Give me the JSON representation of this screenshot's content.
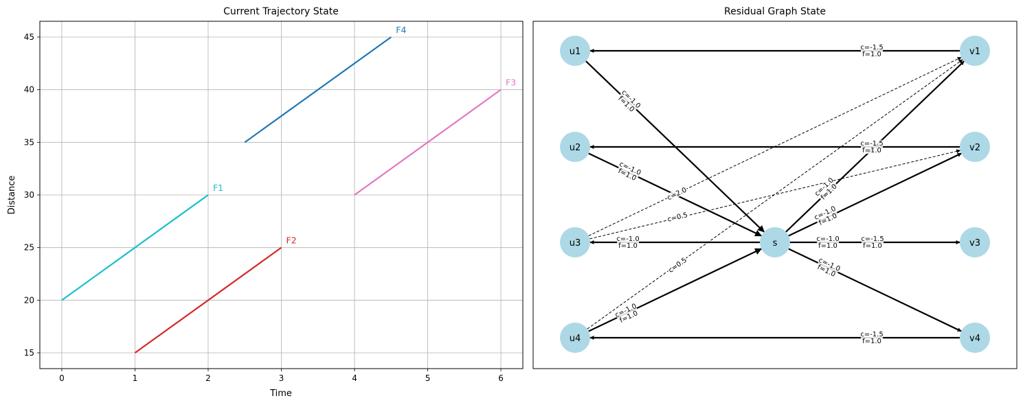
{
  "chart_data": [
    {
      "type": "line",
      "title": "Current Trajectory State",
      "xlabel": "Time",
      "ylabel": "Distance",
      "xlim": [
        -0.3,
        6.3
      ],
      "ylim": [
        13.5,
        46.5
      ],
      "xticks": [
        0,
        1,
        2,
        3,
        4,
        5,
        6
      ],
      "yticks": [
        15,
        20,
        25,
        30,
        35,
        40,
        45
      ],
      "grid": true,
      "series": [
        {
          "name": "F1",
          "color": "#17becf",
          "x": [
            0,
            2
          ],
          "y": [
            20,
            30
          ]
        },
        {
          "name": "F2",
          "color": "#d62728",
          "x": [
            1,
            3
          ],
          "y": [
            15,
            25
          ]
        },
        {
          "name": "F3",
          "color": "#e377c2",
          "x": [
            4,
            6
          ],
          "y": [
            30,
            40
          ]
        },
        {
          "name": "F4",
          "color": "#1f77b4",
          "x": [
            2.5,
            4.5
          ],
          "y": [
            35,
            45
          ]
        }
      ]
    },
    {
      "type": "diagram",
      "title": "Residual Graph State",
      "node_color": "#add8e6",
      "nodes": [
        "u1",
        "u2",
        "u3",
        "u4",
        "s",
        "v1",
        "v2",
        "v3",
        "v4"
      ],
      "edges": [
        {
          "from": "v1",
          "to": "u1",
          "label": [
            "c=-1.5",
            "f=1.0"
          ],
          "style": "solid"
        },
        {
          "from": "v2",
          "to": "u2",
          "label": [
            "c=-1.5",
            "f=1.0"
          ],
          "style": "solid"
        },
        {
          "from": "v4",
          "to": "u4",
          "label": [
            "c=-1.5",
            "f=1.0"
          ],
          "style": "solid"
        },
        {
          "from": "u1",
          "to": "s",
          "label": [
            "c=-1.0",
            "f=1.0"
          ],
          "style": "solid"
        },
        {
          "from": "u2",
          "to": "s",
          "label": [
            "c=-1.0",
            "f=1.0"
          ],
          "style": "solid"
        },
        {
          "from": "s",
          "to": "u3",
          "label": [
            "c=-1.0",
            "f=1.0"
          ],
          "style": "solid"
        },
        {
          "from": "u4",
          "to": "s",
          "label": [
            "c=-1.0",
            "f=1.0"
          ],
          "style": "solid"
        },
        {
          "from": "s",
          "to": "v1",
          "label": [
            "c=-1.0",
            "f=1.0"
          ],
          "style": "solid"
        },
        {
          "from": "s",
          "to": "v2",
          "label": [
            "c=-1.0",
            "f=1.0"
          ],
          "style": "solid"
        },
        {
          "from": "s",
          "to": "v3",
          "label": [
            "c=-1.0",
            "f=1.0"
          ],
          "style": "solid"
        },
        {
          "from": "s",
          "to": "v4",
          "label": [
            "c=-1.0",
            "f=1.0"
          ],
          "style": "solid"
        },
        {
          "from": "s",
          "to": "v3",
          "label": [
            "c=-1.5",
            "f=1.0"
          ],
          "style": "label-only"
        },
        {
          "from": "u3",
          "to": "v1",
          "label": [
            "c=2.0"
          ],
          "style": "dashed"
        },
        {
          "from": "u3",
          "to": "v2",
          "label": [
            "c=0.5"
          ],
          "style": "dashed"
        },
        {
          "from": "u4",
          "to": "v1",
          "label": [
            "c=0.5"
          ],
          "style": "dashed"
        },
        {
          "from": "u4",
          "to": "v2",
          "label": [],
          "style": "dashed"
        }
      ]
    }
  ]
}
